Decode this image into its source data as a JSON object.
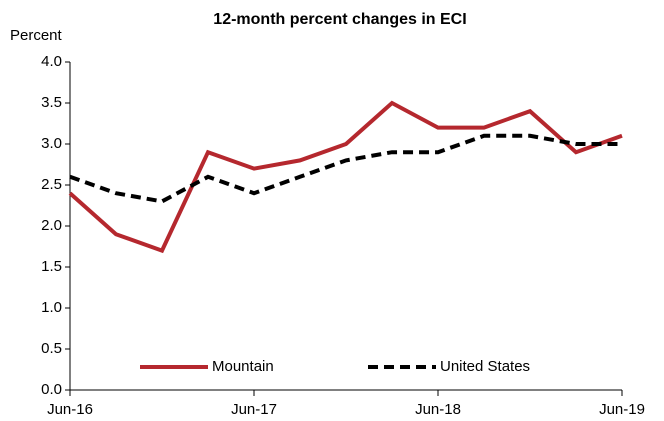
{
  "chart_data": {
    "type": "line",
    "title": "12-month percent changes in ECI",
    "y_label": "Percent",
    "categories": [
      "Jun-16",
      null,
      null,
      null,
      "Jun-17",
      null,
      null,
      null,
      "Jun-18",
      null,
      null,
      null,
      "Jun-19"
    ],
    "series": [
      {
        "name": "Mountain",
        "color": "#b5282e",
        "dash": false,
        "values": [
          2.4,
          1.9,
          1.7,
          2.9,
          2.7,
          2.8,
          3.0,
          3.5,
          3.2,
          3.2,
          3.4,
          2.9,
          3.1
        ]
      },
      {
        "name": "United States",
        "color": "#000000",
        "dash": true,
        "values": [
          2.6,
          2.4,
          2.3,
          2.6,
          2.4,
          2.6,
          2.8,
          2.9,
          2.9,
          3.1,
          3.1,
          3.0,
          3.0
        ]
      }
    ],
    "ylim": [
      0,
      4
    ],
    "yticks": [
      {
        "value": 0,
        "label": "0.0"
      },
      0.5,
      {
        "value": 1,
        "label": "1.0"
      },
      1.5,
      {
        "value": 2,
        "label": "2.0"
      },
      2.5,
      {
        "value": 3,
        "label": "3.0"
      },
      3.5,
      {
        "value": 4,
        "label": "4.0"
      }
    ],
    "grid": false,
    "legend": "bottom"
  }
}
